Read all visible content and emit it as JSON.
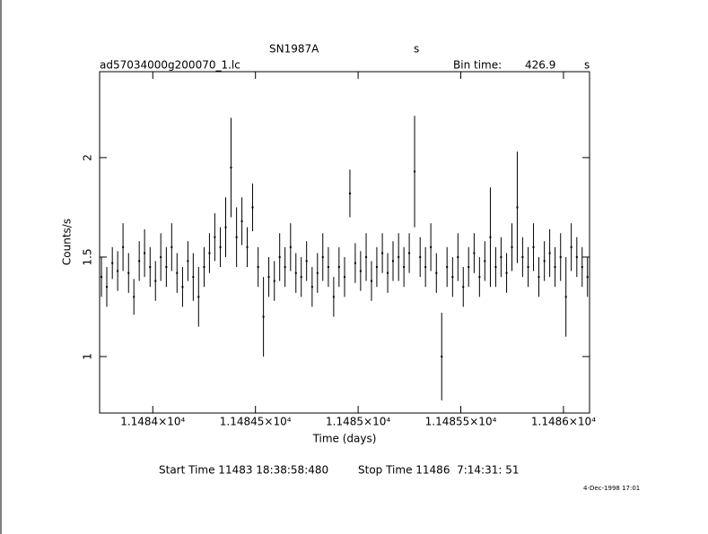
{
  "chart_data": {
    "type": "errorbar",
    "title": "SN1987A",
    "title_unit": "s",
    "subtitle": "ad57034000g200070_1.lc",
    "bin_time_label": "Bin time:",
    "bin_time": 426.9,
    "bin_time_unit": "s",
    "x_label": "Time (days)",
    "y_label": "Counts/s",
    "start_time": "Start Time 11483 18:38:58:480",
    "stop_time": "Stop Time 11486  7:14:31: 51",
    "date": "4-Dec-1998 17:01",
    "color": "#000000",
    "xlim": [
      11483.741,
      11486.127
    ],
    "ylim": [
      0.716,
      2.432
    ],
    "xticks": [
      {
        "value": 11484,
        "label": "1.1484×10⁴"
      },
      {
        "value": 11484.5,
        "label": "1.14845×10⁴"
      },
      {
        "value": 11485,
        "label": "1.1485×10⁴"
      },
      {
        "value": 11485.5,
        "label": "1.14855×10⁴"
      },
      {
        "value": 11486,
        "label": "1.1486×10⁴"
      }
    ],
    "yticks": [
      1,
      1.5,
      2
    ],
    "x": [
      11483.75,
      11483.776,
      11483.803,
      11483.829,
      11483.855,
      11483.882,
      11483.908,
      11483.934,
      11483.96,
      11483.987,
      11484.013,
      11484.039,
      11484.066,
      11484.092,
      11484.118,
      11484.145,
      11484.171,
      11484.197,
      11484.223,
      11484.25,
      11484.276,
      11484.302,
      11484.329,
      11484.355,
      11484.381,
      11484.408,
      11484.434,
      11484.46,
      11484.486,
      11484.513,
      11484.539,
      11484.565,
      11484.592,
      11484.618,
      11484.644,
      11484.671,
      11484.697,
      11484.723,
      11484.749,
      11484.776,
      11484.802,
      11484.828,
      11484.855,
      11484.881,
      11484.907,
      11484.934,
      11484.96,
      11484.986,
      11485.012,
      11485.039,
      11485.065,
      11485.091,
      11485.118,
      11485.144,
      11485.17,
      11485.197,
      11485.223,
      11485.249,
      11485.275,
      11485.302,
      11485.328,
      11485.354,
      11485.381,
      11485.407,
      11485.433,
      11485.46,
      11485.486,
      11485.512,
      11485.538,
      11485.565,
      11485.591,
      11485.617,
      11485.644,
      11485.67,
      11485.696,
      11485.723,
      11485.749,
      11485.775,
      11485.801,
      11485.828,
      11485.854,
      11485.88,
      11485.907,
      11485.933,
      11485.959,
      11485.986,
      11486.012,
      11486.038,
      11486.065,
      11486.091,
      11486.117
    ],
    "values": [
      1.4,
      1.35,
      1.47,
      1.43,
      1.55,
      1.42,
      1.3,
      1.48,
      1.52,
      1.45,
      1.38,
      1.5,
      1.45,
      1.55,
      1.42,
      1.35,
      1.48,
      1.4,
      1.3,
      1.45,
      1.52,
      1.6,
      1.55,
      1.65,
      1.95,
      1.6,
      1.68,
      1.55,
      1.75,
      1.45,
      1.2,
      1.4,
      1.38,
      1.5,
      1.45,
      1.55,
      1.42,
      1.4,
      1.48,
      1.35,
      1.42,
      1.5,
      1.45,
      1.3,
      1.45,
      1.4,
      1.82,
      1.47,
      1.43,
      1.5,
      1.38,
      1.45,
      1.52,
      1.42,
      1.48,
      1.5,
      1.45,
      1.52,
      1.93,
      1.5,
      1.45,
      1.55,
      1.42,
      1.0,
      1.45,
      1.4,
      1.5,
      1.35,
      1.45,
      1.52,
      1.4,
      1.48,
      1.6,
      1.45,
      1.5,
      1.42,
      1.55,
      1.75,
      1.5,
      1.45,
      1.55,
      1.4,
      1.48,
      1.52,
      1.45,
      1.5,
      1.3,
      1.55,
      1.5,
      1.45,
      1.4
    ],
    "errors": [
      0.1,
      0.1,
      0.08,
      0.1,
      0.12,
      0.1,
      0.09,
      0.1,
      0.12,
      0.1,
      0.1,
      0.12,
      0.1,
      0.12,
      0.1,
      0.1,
      0.1,
      0.12,
      0.15,
      0.1,
      0.1,
      0.12,
      0.1,
      0.15,
      0.25,
      0.15,
      0.12,
      0.1,
      0.12,
      0.1,
      0.2,
      0.1,
      0.1,
      0.12,
      0.1,
      0.12,
      0.1,
      0.1,
      0.1,
      0.1,
      0.1,
      0.12,
      0.1,
      0.1,
      0.1,
      0.1,
      0.12,
      0.1,
      0.1,
      0.12,
      0.1,
      0.1,
      0.1,
      0.1,
      0.1,
      0.12,
      0.1,
      0.1,
      0.28,
      0.1,
      0.1,
      0.12,
      0.1,
      0.22,
      0.1,
      0.1,
      0.12,
      0.1,
      0.1,
      0.1,
      0.1,
      0.1,
      0.25,
      0.1,
      0.1,
      0.1,
      0.12,
      0.28,
      0.1,
      0.1,
      0.12,
      0.1,
      0.1,
      0.12,
      0.1,
      0.12,
      0.2,
      0.12,
      0.1,
      0.1,
      0.1
    ]
  }
}
